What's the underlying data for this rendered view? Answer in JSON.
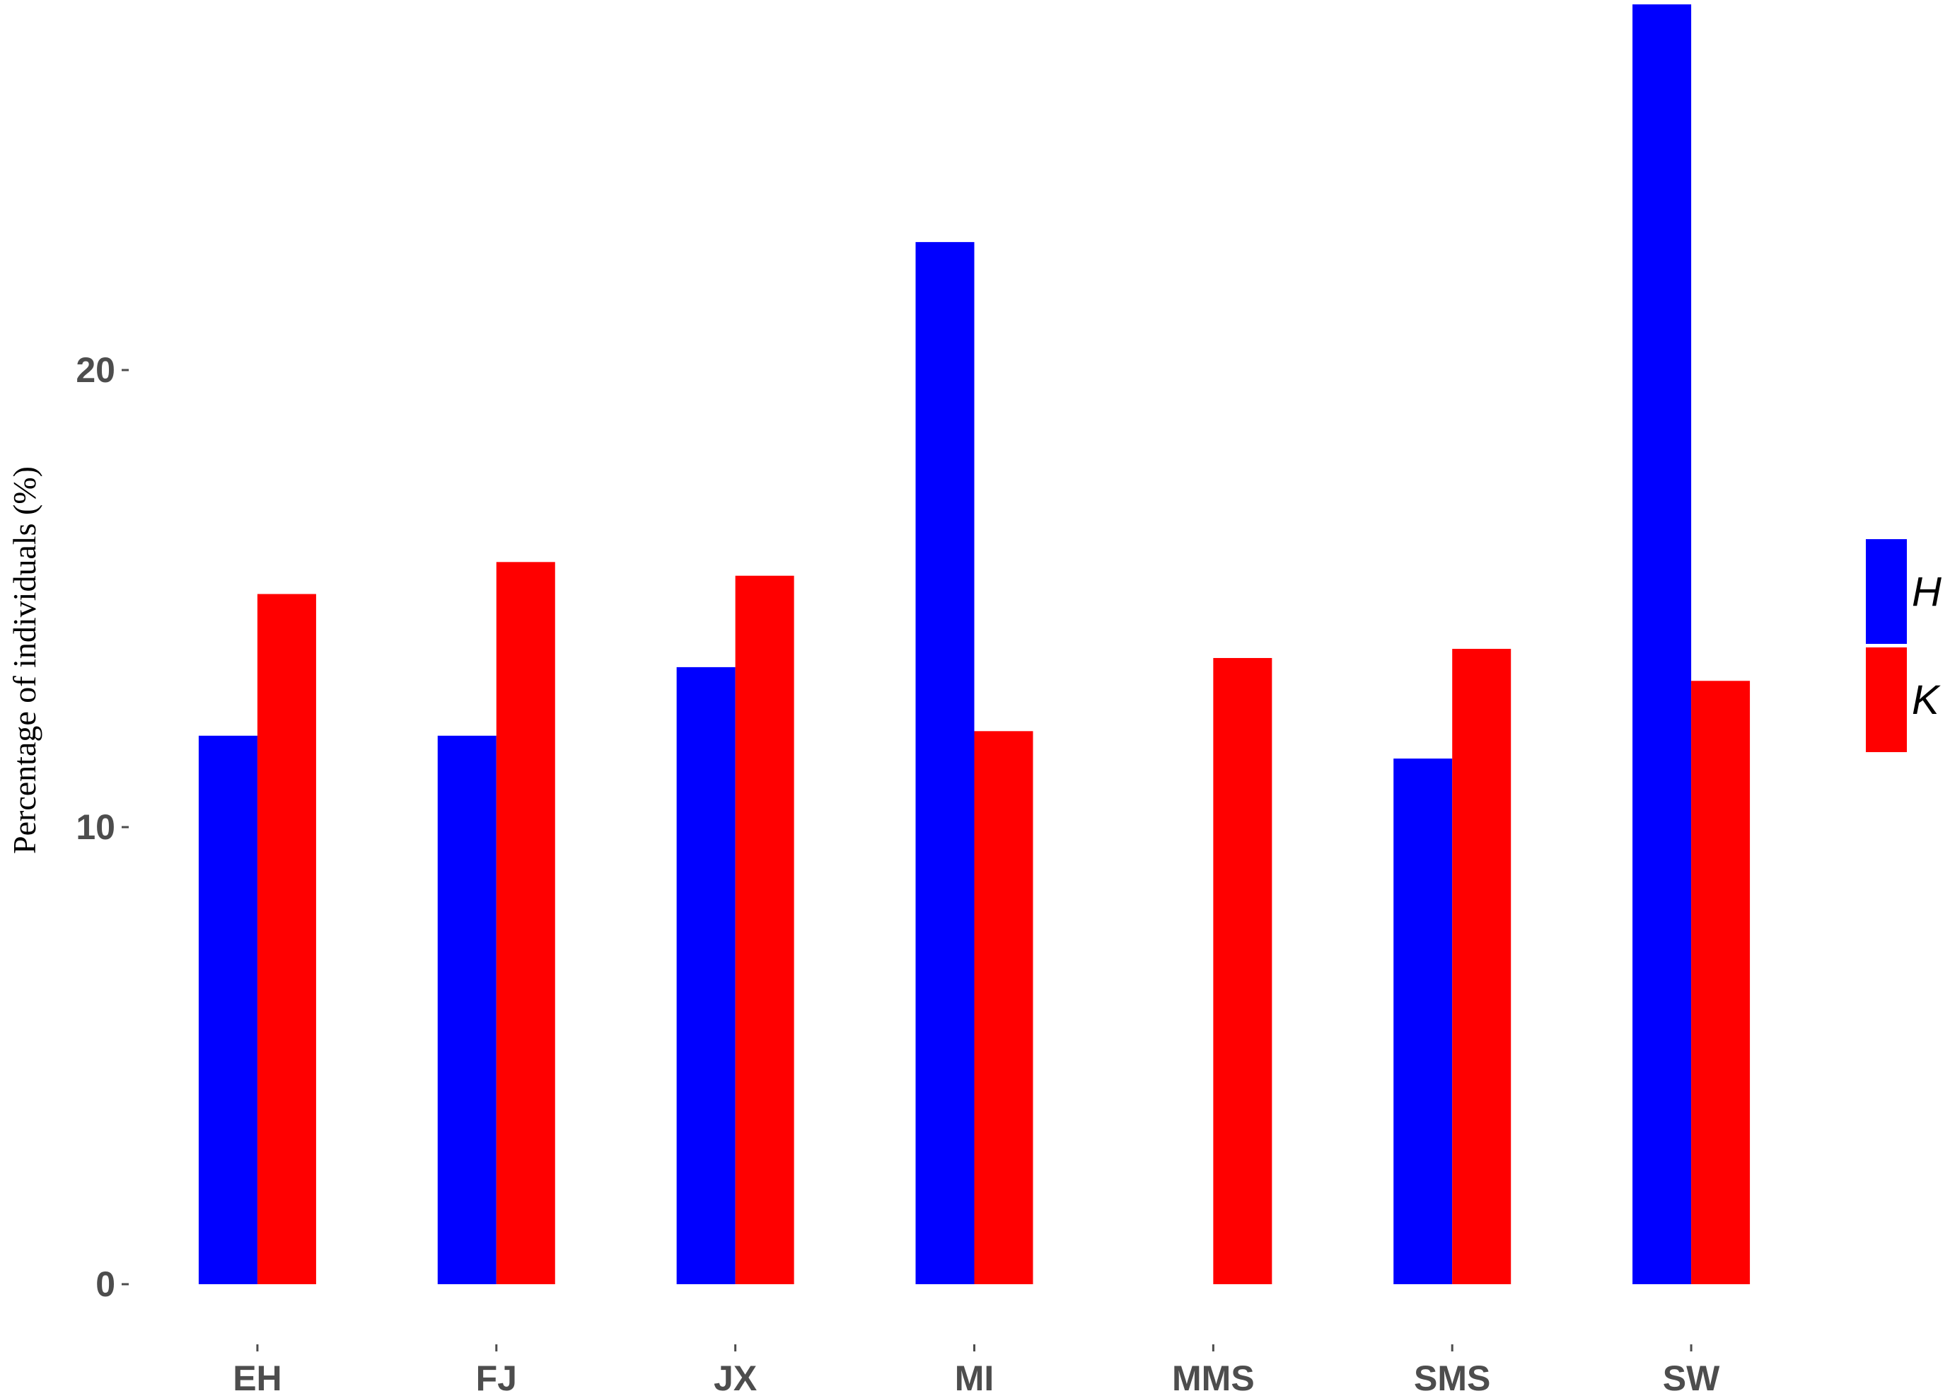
{
  "chart_data": {
    "type": "bar",
    "title": "",
    "xlabel": "",
    "ylabel": "Percentage of individuals (%)",
    "categories": [
      "EH",
      "FJ",
      "JX",
      "MI",
      "MMS",
      "SMS",
      "SW"
    ],
    "series": [
      {
        "name": "H",
        "color": "#0000ff",
        "values": [
          12.0,
          12.0,
          13.5,
          22.8,
          0,
          11.5,
          28.0
        ]
      },
      {
        "name": "K",
        "color": "#ff0000",
        "values": [
          15.1,
          15.8,
          15.5,
          12.1,
          13.7,
          13.9,
          13.2
        ]
      }
    ],
    "yticks": [
      0,
      10,
      20
    ],
    "ylim": [
      -0.9,
      28.1
    ],
    "grid": false,
    "legend": "right"
  }
}
